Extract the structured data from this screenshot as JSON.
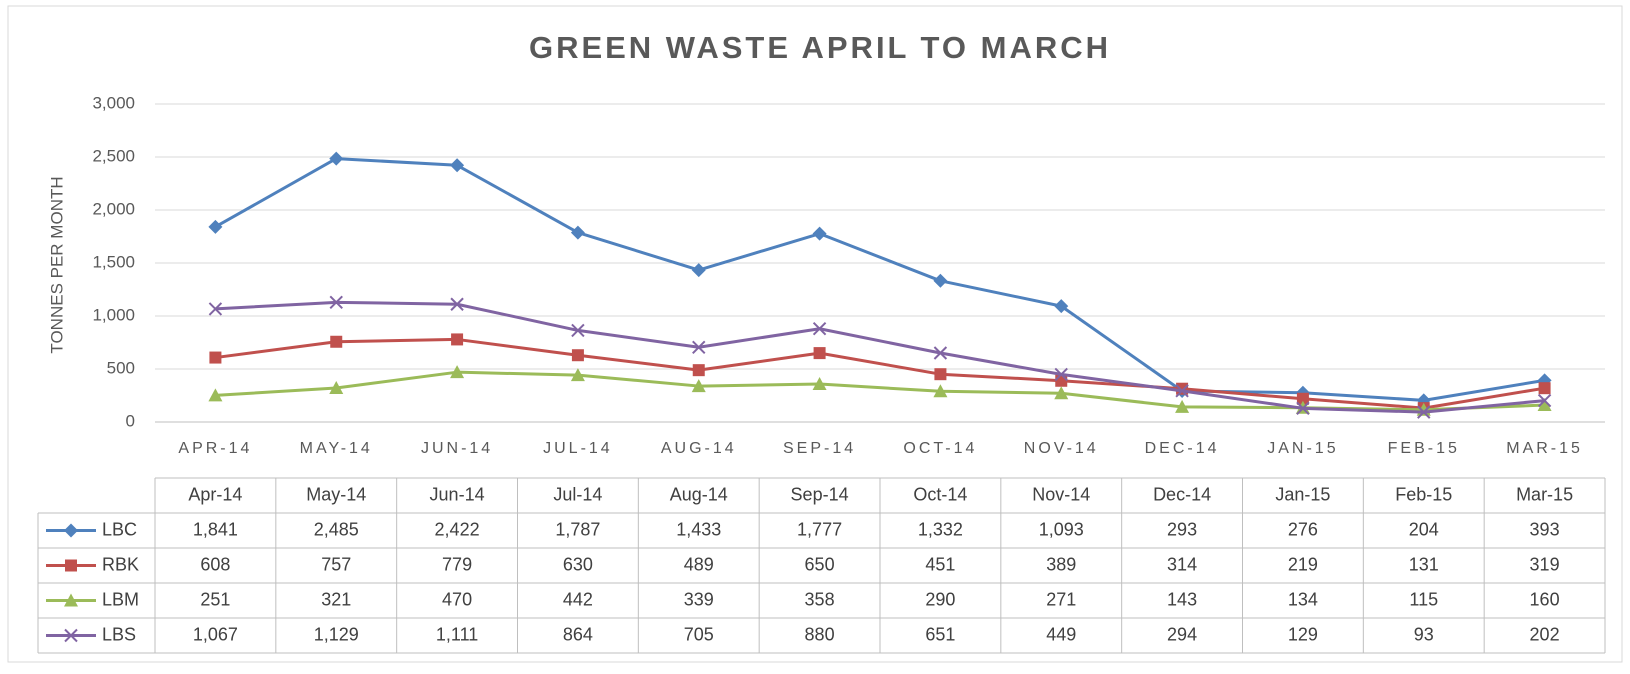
{
  "chart_data": {
    "type": "line",
    "title": "GREEN WASTE APRIL TO MARCH",
    "y_label": "TONNES PER MONTH",
    "categories": [
      "APR-14",
      "MAY-14",
      "JUN-14",
      "JUL-14",
      "AUG-14",
      "SEP-14",
      "OCT-14",
      "NOV-14",
      "DEC-14",
      "JAN-15",
      "FEB-15",
      "MAR-15"
    ],
    "table_header": [
      "Apr-14",
      "May-14",
      "Jun-14",
      "Jul-14",
      "Aug-14",
      "Sep-14",
      "Oct-14",
      "Nov-14",
      "Dec-14",
      "Jan-15",
      "Feb-15",
      "Mar-15"
    ],
    "ylim": [
      0,
      3000
    ],
    "yticks": [
      0,
      500,
      {
        "value": 1000,
        "label": "1,000"
      },
      {
        "value": 1500,
        "label": "1,500"
      },
      {
        "value": 2000,
        "label": "2,000"
      },
      {
        "value": 2500,
        "label": "2,500"
      },
      {
        "value": 3000,
        "label": "3,000"
      }
    ],
    "grid": true,
    "series": [
      {
        "name": "LBC",
        "color": "#4f81bd",
        "marker": "diamond",
        "values": [
          1841,
          2485,
          2422,
          1787,
          1433,
          1777,
          1332,
          1093,
          293,
          276,
          204,
          393
        ],
        "value_labels": [
          "1,841",
          "2,485",
          "2,422",
          "1,787",
          "1,433",
          "1,777",
          "1,332",
          "1,093",
          "293",
          "276",
          "204",
          "393"
        ]
      },
      {
        "name": "RBK",
        "color": "#c0504d",
        "marker": "square",
        "values": [
          608,
          757,
          779,
          630,
          489,
          650,
          451,
          389,
          314,
          219,
          131,
          319
        ],
        "value_labels": [
          "608",
          "757",
          "779",
          "630",
          "489",
          "650",
          "451",
          "389",
          "314",
          "219",
          "131",
          "319"
        ]
      },
      {
        "name": "LBM",
        "color": "#9bbb59",
        "marker": "triangle",
        "values": [
          251,
          321,
          470,
          442,
          339,
          358,
          290,
          271,
          143,
          134,
          115,
          160
        ],
        "value_labels": [
          "251",
          "321",
          "470",
          "442",
          "339",
          "358",
          "290",
          "271",
          "143",
          "134",
          "115",
          "160"
        ]
      },
      {
        "name": "LBS",
        "color": "#8064a2",
        "marker": "x",
        "values": [
          1067,
          1129,
          1111,
          864,
          705,
          880,
          651,
          449,
          294,
          129,
          93,
          202
        ],
        "value_labels": [
          "1,067",
          "1,129",
          "1,111",
          "864",
          "705",
          "880",
          "651",
          "449",
          "294",
          "129",
          "93",
          "202"
        ]
      }
    ]
  }
}
